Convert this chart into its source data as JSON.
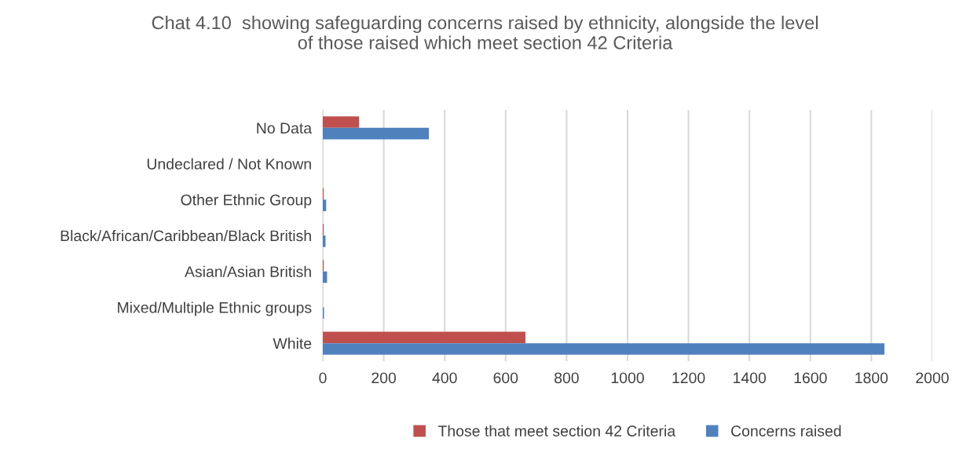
{
  "chart_data": {
    "type": "bar",
    "orientation": "horizontal",
    "title": "Chat 4.10  showing safeguarding concerns raised by ethnicity, alongside the level\nof those raised which meet section 42 Criteria",
    "categories": [
      "No Data",
      "Undeclared / Not Known",
      "Other Ethnic Group",
      "Black/African/Caribbean/Black British",
      "Asian/Asian British",
      "Mixed/Multiple Ethnic groups",
      "White"
    ],
    "series": [
      {
        "name": "Those that meet section 42 Criteria",
        "color": "#c0504d",
        "values": [
          119,
          0,
          3,
          3,
          3,
          0,
          665
        ]
      },
      {
        "name": "Concerns raised",
        "color": "#4f81bd",
        "values": [
          348,
          0,
          11,
          9,
          14,
          4,
          1843
        ]
      }
    ],
    "xlim": [
      0,
      2000
    ],
    "xticks": [
      0,
      200,
      400,
      600,
      800,
      1000,
      1200,
      1400,
      1600,
      1800,
      2000
    ],
    "grid": "x",
    "legend": "bottom"
  }
}
